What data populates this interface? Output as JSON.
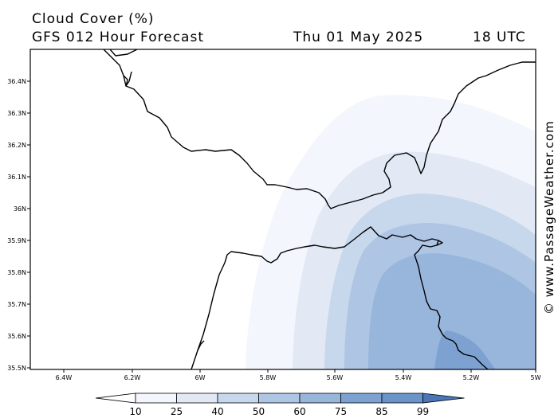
{
  "header": {
    "title": "Cloud Cover (%)",
    "subtitle": "GFS 012 Hour Forecast",
    "date": "Thu 01 May 2025",
    "time": "18 UTC"
  },
  "map": {
    "latitudes": [
      "36.4N",
      "36.3N",
      "36.2N",
      "36.1N",
      "36N",
      "35.9N",
      "35.8N",
      "35.7N",
      "35.6N",
      "35.5N"
    ],
    "longitudes": [
      "6.4W",
      "6.2W",
      "6W",
      "5.8W",
      "5.6W",
      "5.4W",
      "5.2W",
      "5W"
    ]
  },
  "legend": {
    "levels": [
      "10",
      "25",
      "40",
      "50",
      "60",
      "75",
      "85",
      "99"
    ],
    "colors": [
      "#ffffff",
      "#f3f6fc",
      "#e2e9f5",
      "#c7d7ec",
      "#aec5e4",
      "#98b6dc",
      "#7da2d2",
      "#6a93c9",
      "#4a76b8"
    ]
  },
  "watermark": "© www.PassageWeather.com"
}
